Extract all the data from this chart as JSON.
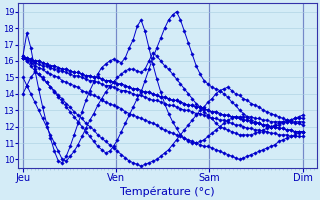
{
  "xlabel": "Température (°c)",
  "ylim": [
    9.5,
    19.5
  ],
  "yticks": [
    10,
    11,
    12,
    13,
    14,
    15,
    16,
    17,
    18,
    19
  ],
  "day_labels": [
    "Jeu",
    "Ven",
    "Sam",
    "Dim"
  ],
  "day_positions": [
    0,
    1,
    2,
    3
  ],
  "bg_color": "#d4ecf7",
  "grid_color": "#a8cfe0",
  "line_color": "#0000cc",
  "n_per_day": 24,
  "series": [
    [
      16.2,
      16.2,
      16.1,
      16.0,
      16.0,
      15.9,
      15.8,
      15.7,
      15.7,
      15.6,
      15.5,
      15.5,
      15.4,
      15.3,
      15.3,
      15.2,
      15.1,
      15.1,
      15.0,
      15.0,
      14.9,
      14.8,
      14.8,
      14.7,
      14.6,
      14.6,
      14.5,
      14.4,
      14.3,
      14.3,
      14.2,
      14.1,
      14.1,
      14.0,
      13.9,
      13.8,
      13.8,
      13.7,
      13.6,
      13.6,
      13.5,
      13.4,
      13.3,
      13.3,
      13.2,
      13.2,
      13.1,
      13.0,
      12.9,
      12.9,
      12.8,
      12.7,
      12.7,
      12.6,
      12.6,
      12.5,
      12.4,
      12.4,
      12.3,
      12.2,
      12.2,
      12.1,
      12.1,
      12.0,
      12.0,
      11.9,
      11.9,
      11.8,
      11.8,
      11.7,
      11.7,
      11.7
    ],
    [
      16.2,
      16.2,
      16.1,
      16.0,
      16.0,
      15.9,
      15.8,
      15.7,
      15.7,
      15.6,
      15.5,
      15.5,
      15.4,
      15.3,
      15.3,
      15.2,
      15.1,
      15.1,
      15.0,
      15.0,
      14.9,
      14.8,
      14.8,
      14.7,
      14.6,
      14.6,
      14.5,
      14.4,
      14.3,
      14.3,
      14.2,
      14.1,
      14.1,
      14.0,
      13.9,
      13.8,
      13.8,
      13.7,
      13.6,
      13.6,
      13.5,
      13.4,
      13.3,
      13.3,
      13.2,
      13.2,
      13.1,
      13.0,
      12.9,
      12.9,
      12.8,
      12.7,
      12.7,
      12.6,
      12.6,
      12.5,
      12.4,
      12.4,
      12.3,
      12.2,
      12.2,
      12.1,
      12.1,
      12.0,
      12.0,
      11.9,
      11.9,
      11.8,
      11.8,
      11.7,
      11.7,
      11.7
    ],
    [
      16.2,
      16.1,
      16.0,
      15.9,
      15.8,
      15.7,
      15.7,
      15.6,
      15.5,
      15.4,
      15.4,
      15.3,
      15.2,
      15.1,
      15.1,
      15.0,
      14.9,
      14.8,
      14.8,
      14.7,
      14.6,
      14.5,
      14.5,
      14.4,
      14.3,
      14.2,
      14.2,
      14.1,
      14.0,
      13.9,
      13.9,
      13.8,
      13.7,
      13.6,
      13.6,
      13.5,
      13.4,
      13.3,
      13.3,
      13.2,
      13.1,
      13.0,
      13.0,
      12.9,
      12.8,
      12.8,
      12.7,
      12.6,
      12.5,
      12.5,
      12.4,
      12.4,
      12.3,
      12.2,
      12.1,
      12.1,
      12.0,
      11.9,
      11.9,
      11.8,
      11.8,
      11.7,
      11.7,
      11.6,
      11.6,
      11.5,
      11.5,
      11.5,
      11.4,
      11.4,
      11.4,
      11.4
    ],
    [
      16.2,
      16.0,
      15.9,
      15.7,
      15.6,
      15.5,
      15.3,
      15.2,
      15.1,
      15.0,
      14.8,
      14.7,
      14.6,
      14.5,
      14.4,
      14.2,
      14.1,
      14.0,
      13.9,
      13.8,
      13.6,
      13.5,
      13.4,
      13.3,
      13.2,
      13.1,
      12.9,
      12.8,
      12.7,
      12.6,
      12.5,
      12.4,
      12.3,
      12.2,
      12.1,
      11.9,
      11.8,
      11.7,
      11.6,
      11.5,
      11.4,
      11.3,
      11.2,
      11.1,
      11.0,
      10.9,
      10.8,
      10.8,
      10.7,
      10.6,
      10.5,
      10.4,
      10.3,
      10.2,
      10.1,
      10.0,
      10.1,
      10.2,
      10.3,
      10.4,
      10.5,
      10.6,
      10.7,
      10.8,
      10.9,
      11.1,
      11.2,
      11.3,
      11.4,
      11.5,
      11.6,
      11.7
    ],
    [
      16.3,
      16.0,
      15.7,
      15.4,
      15.2,
      14.9,
      14.7,
      14.4,
      14.2,
      13.9,
      13.7,
      13.4,
      13.2,
      12.9,
      12.7,
      12.5,
      12.2,
      12.0,
      11.8,
      11.5,
      11.3,
      11.1,
      10.9,
      10.7,
      10.5,
      10.3,
      10.1,
      9.9,
      9.8,
      9.7,
      9.6,
      9.7,
      9.8,
      9.9,
      10.0,
      10.2,
      10.4,
      10.6,
      10.9,
      11.2,
      11.5,
      11.8,
      12.1,
      12.4,
      12.7,
      13.0,
      13.2,
      13.5,
      13.7,
      14.0,
      14.2,
      14.3,
      14.4,
      14.2,
      14.0,
      13.9,
      13.7,
      13.6,
      13.4,
      13.3,
      13.2,
      13.0,
      12.9,
      12.8,
      12.7,
      12.6,
      12.5,
      12.4,
      12.3,
      12.2,
      12.2,
      12.1
    ],
    [
      15.0,
      14.5,
      14.0,
      13.5,
      13.0,
      12.5,
      12.0,
      11.5,
      11.0,
      10.5,
      10.0,
      9.9,
      10.2,
      10.5,
      10.9,
      11.4,
      11.9,
      12.4,
      12.8,
      13.3,
      13.7,
      14.1,
      14.4,
      14.7,
      15.0,
      15.2,
      15.4,
      15.5,
      15.5,
      15.4,
      15.3,
      15.5,
      16.0,
      16.5,
      16.3,
      16.0,
      15.7,
      15.5,
      15.2,
      14.9,
      14.6,
      14.3,
      14.0,
      13.7,
      13.4,
      13.2,
      12.9,
      12.7,
      12.5,
      12.2,
      12.0,
      11.9,
      11.8,
      11.7,
      11.6,
      11.5,
      11.5,
      11.5,
      11.5,
      11.6,
      11.7,
      11.8,
      11.9,
      12.0,
      12.1,
      12.2,
      12.3,
      12.4,
      12.4,
      12.5,
      12.5,
      12.5
    ],
    [
      16.3,
      17.7,
      16.8,
      15.5,
      14.3,
      13.2,
      12.2,
      11.3,
      10.5,
      9.9,
      9.8,
      10.2,
      10.8,
      11.5,
      12.2,
      12.9,
      13.6,
      14.2,
      14.7,
      15.2,
      15.6,
      15.8,
      16.0,
      16.1,
      16.0,
      15.9,
      16.2,
      16.8,
      17.3,
      18.1,
      18.5,
      17.8,
      16.8,
      15.8,
      14.9,
      14.1,
      13.4,
      12.8,
      12.3,
      11.9,
      11.5,
      11.3,
      11.1,
      11.0,
      11.0,
      11.1,
      11.2,
      11.4,
      11.6,
      11.8,
      12.0,
      12.2,
      12.4,
      12.5,
      12.6,
      12.6,
      12.6,
      12.6,
      12.6,
      12.5,
      12.5,
      12.4,
      12.4,
      12.3,
      12.3,
      12.3,
      12.3,
      12.3,
      12.3,
      12.3,
      12.3,
      12.3
    ],
    [
      14.0,
      14.5,
      15.0,
      15.3,
      15.2,
      15.0,
      14.7,
      14.4,
      14.1,
      13.8,
      13.5,
      13.2,
      12.9,
      12.6,
      12.3,
      12.0,
      11.7,
      11.4,
      11.1,
      10.8,
      10.6,
      10.4,
      10.5,
      10.8,
      11.2,
      11.7,
      12.2,
      12.7,
      13.2,
      13.7,
      14.1,
      14.8,
      15.5,
      16.2,
      16.8,
      17.4,
      18.0,
      18.5,
      18.8,
      19.0,
      18.5,
      17.8,
      17.1,
      16.4,
      15.7,
      15.2,
      14.8,
      14.6,
      14.4,
      14.3,
      14.2,
      14.0,
      13.8,
      13.5,
      13.3,
      13.0,
      12.8,
      12.6,
      12.4,
      12.3,
      12.2,
      12.1,
      12.0,
      12.0,
      12.0,
      12.1,
      12.2,
      12.3,
      12.4,
      12.5,
      12.6,
      12.7
    ]
  ]
}
